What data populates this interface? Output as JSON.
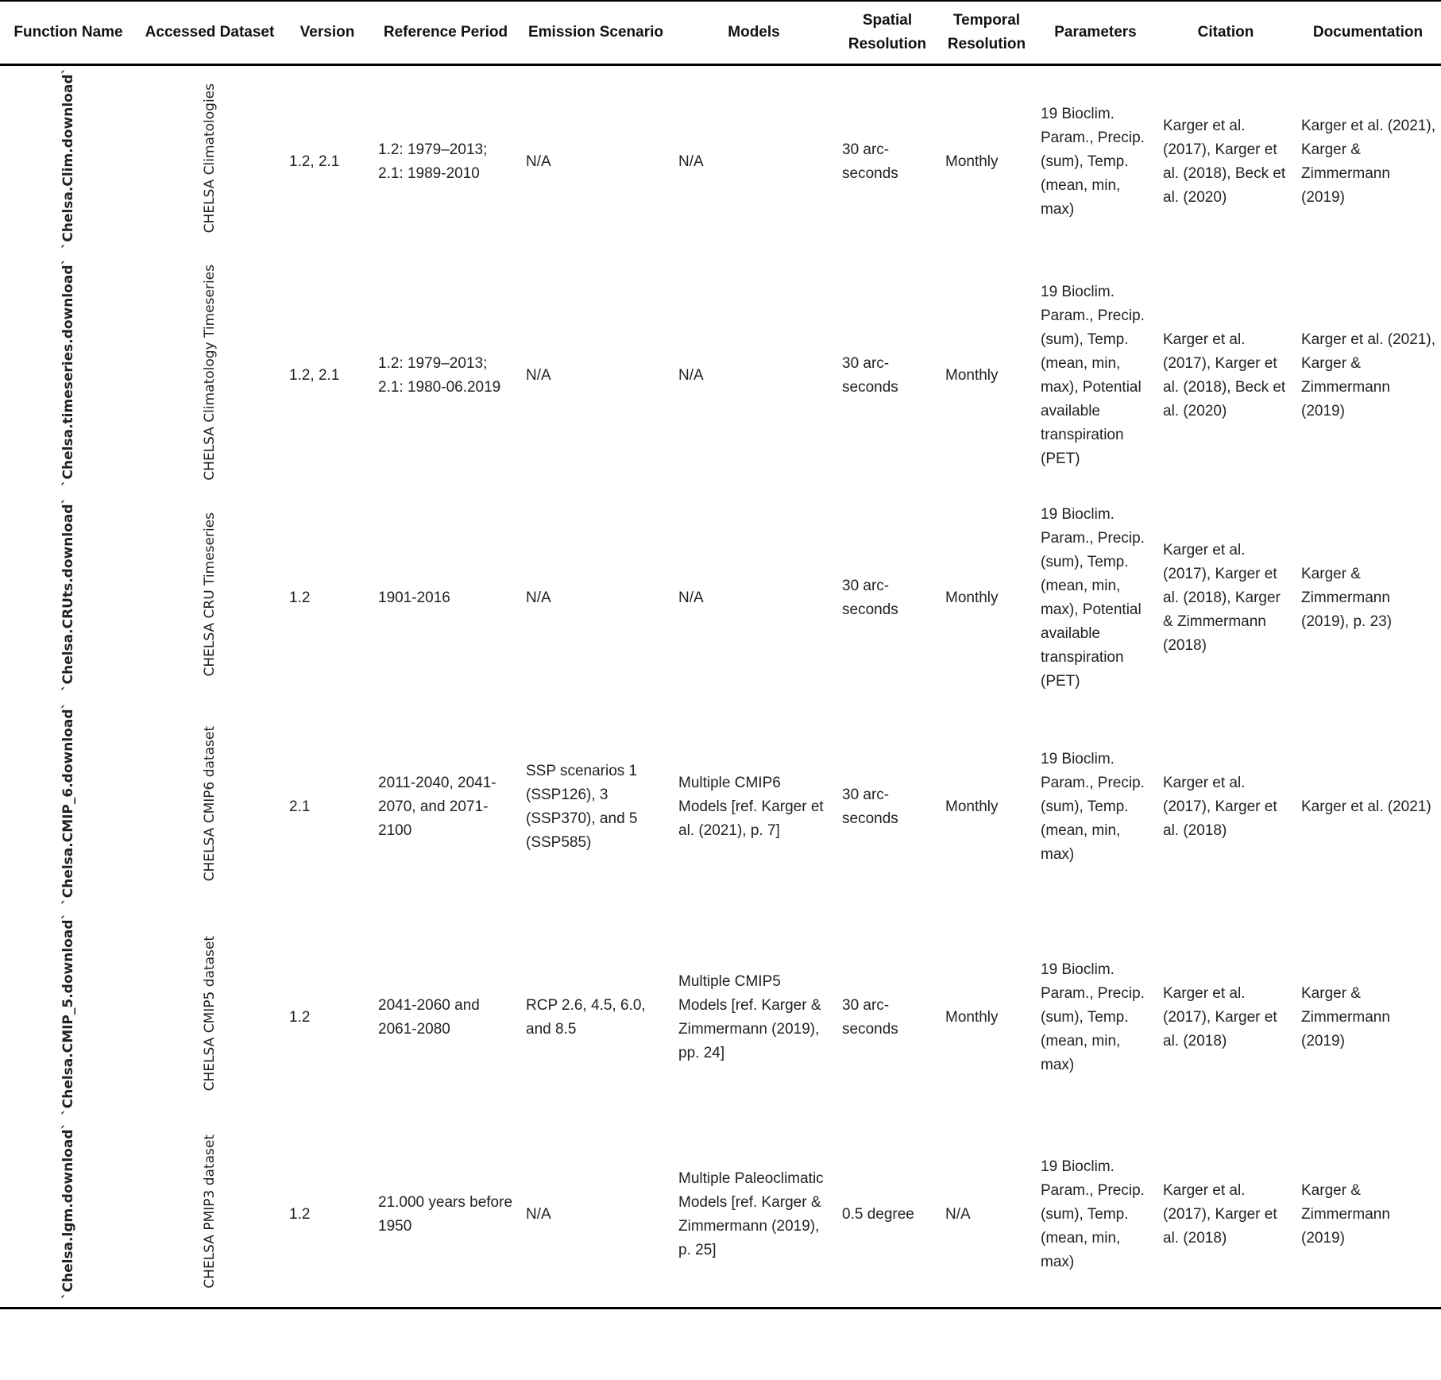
{
  "table": {
    "headers": [
      "Function Name",
      "Accessed Dataset",
      "Version",
      "Reference Period",
      "Emission Scenario",
      "Models",
      "Spatial Resolution",
      "Temporal Resolution",
      "Parameters",
      "Citation",
      "Documentation"
    ],
    "rows": [
      {
        "function": "`Chelsa.Clim.download`",
        "dataset": "CHELSA Climatologies",
        "version": "1.2, 2.1",
        "period": "1.2: 1979–2013; 2.1: 1989-2010",
        "scenario": "N/A",
        "models": "N/A",
        "spatial": "30 arc-seconds",
        "temporal": "Monthly",
        "parameters": "19 Bioclim. Param., Precip. (sum), Temp. (mean, min, max)",
        "citation": "Karger et al. (2017), Karger et al. (2018),  Beck et al. (2020)",
        "documentation": "Karger et al. (2021), Karger & Zimmermann (2019)"
      },
      {
        "function": "`Chelsa.timeseries.download`",
        "dataset": "CHELSA Climatology Timeseries",
        "version": "1.2, 2.1",
        "period": "1.2: 1979–2013; 2.1: 1980-06.2019",
        "scenario": "N/A",
        "models": "N/A",
        "spatial": "30 arc-seconds",
        "temporal": "Monthly",
        "parameters": "19 Bioclim. Param., Precip. (sum), Temp. (mean, min, max), Potential available transpiration (PET)",
        "citation": "Karger et al. (2017), Karger et al. (2018), Beck et al. (2020)",
        "documentation": "Karger et al. (2021), Karger & Zimmermann (2019)"
      },
      {
        "function": "`Chelsa.CRUts.download`",
        "dataset": "CHELSA CRU Timeseries",
        "version": "1.2",
        "period": "1901-2016",
        "scenario": "N/A",
        "models": "N/A",
        "spatial": "30 arc-seconds",
        "temporal": "Monthly",
        "parameters": "19 Bioclim. Param., Precip. (sum), Temp. (mean, min, max), Potential available transpiration (PET)",
        "citation": "Karger et al. (2017), Karger et al. (2018),  Karger & Zimmermann (2018)",
        "documentation": "Karger & Zimmermann (2019), p. 23)"
      },
      {
        "function": "`Chelsa.CMIP_6.download`",
        "dataset": "CHELSA CMIP6 dataset",
        "version": "2.1",
        "period": "2011-2040, 2041-2070, and 2071-2100",
        "scenario": "SSP scenarios 1 (SSP126), 3 (SSP370), and 5 (SSP585)",
        "models": "Multiple CMIP6 Models [ref. Karger et al. (2021), p. 7]",
        "spatial": "30 arc-seconds",
        "temporal": "Monthly",
        "parameters": "19 Bioclim. Param., Precip. (sum), Temp. (mean, min, max)",
        "citation": "Karger et al. (2017), Karger et al. (2018)",
        "documentation": "Karger et al. (2021)"
      },
      {
        "function": "`Chelsa.CMIP_5.download`",
        "dataset": "CHELSA CMIP5 dataset",
        "version": "1.2",
        "period": "2041-2060 and 2061-2080",
        "scenario": "RCP 2.6, 4.5, 6.0, and 8.5",
        "models": "Multiple CMIP5 Models [ref. Karger & Zimmermann (2019), pp. 24]",
        "spatial": "30 arc-seconds",
        "temporal": "Monthly",
        "parameters": "19 Bioclim. Param., Precip. (sum), Temp. (mean, min, max)",
        "citation": "Karger et al. (2017), Karger et al. (2018)",
        "documentation": "Karger & Zimmermann (2019)"
      },
      {
        "function": "`Chelsa.lgm.download`",
        "dataset": "CHELSA PMIP3 dataset",
        "version": "1.2",
        "period": "21.000 years before 1950",
        "scenario": "N/A",
        "models": "Multiple Paleoclimatic Models [ref. Karger & Zimmermann (2019), p. 25]",
        "spatial": "0.5 degree",
        "temporal": "N/A",
        "parameters": "19 Bioclim. Param., Precip. (sum), Temp. (mean, min, max)",
        "citation": "Karger et al. (2017), Karger et al. (2018)",
        "documentation": "Karger & Zimmermann (2019)"
      }
    ]
  }
}
